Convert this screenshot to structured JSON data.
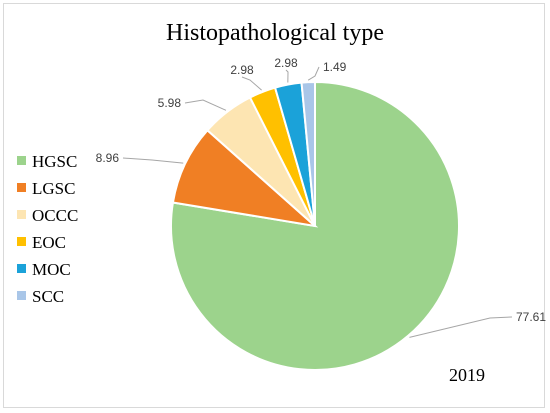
{
  "chart_data": {
    "type": "pie",
    "title": "Histopathological type",
    "annotation": "2019",
    "categories": [
      "HGSC",
      "LGSC",
      "OCCC",
      "EOC",
      "MOC",
      "SCC"
    ],
    "values": [
      77.61,
      8.96,
      5.98,
      2.98,
      2.98,
      1.49
    ],
    "value_labels": [
      "77.61",
      "8.96",
      "5.98",
      "2.98",
      "2.98",
      "1.49"
    ],
    "colors": [
      "#9cd38c",
      "#f07f24",
      "#fde5b2",
      "#ffc000",
      "#1ba2d9",
      "#a9c6e8"
    ],
    "start_angle_deg": 0,
    "direction": "clockwise",
    "legend_position": "left"
  }
}
